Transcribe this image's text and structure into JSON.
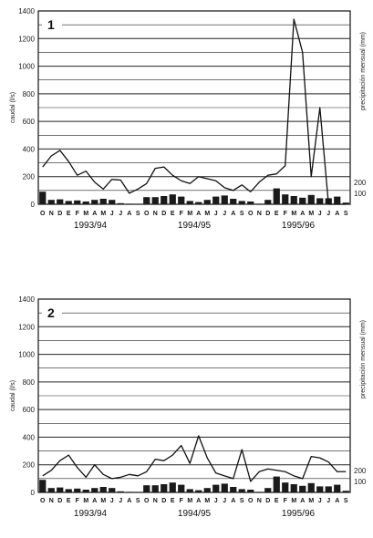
{
  "chart_data": [
    {
      "type": "line+bar",
      "panel_label": "1",
      "ylabel_left": "caudal (l/s)",
      "ylabel_right": "precipitación mensual (mm)",
      "ylim_left": [
        0,
        1400
      ],
      "yticks_left": [
        "0",
        "200",
        "400",
        "600",
        "800",
        "1000",
        "1200",
        "1400"
      ],
      "yticks_right": [
        "0",
        "100",
        "200"
      ],
      "months": [
        "O",
        "N",
        "D",
        "E",
        "F",
        "M",
        "A",
        "M",
        "J",
        "J",
        "A",
        "S",
        "O",
        "N",
        "D",
        "E",
        "F",
        "M",
        "A",
        "M",
        "J",
        "J",
        "A",
        "S",
        "O",
        "N",
        "D",
        "E",
        "F",
        "M",
        "A",
        "M",
        "J",
        "J",
        "A",
        "S"
      ],
      "seasons": [
        "1993/94",
        "1994/95",
        "1995/96"
      ],
      "series": [
        {
          "kind": "line",
          "axis": "left",
          "values": [
            270,
            350,
            390,
            310,
            210,
            240,
            160,
            110,
            180,
            175,
            80,
            110,
            150,
            260,
            270,
            210,
            170,
            150,
            200,
            185,
            170,
            120,
            100,
            140,
            90,
            160,
            210,
            220,
            280,
            1340,
            1100,
            200,
            700,
            0,
            0,
            0
          ]
        },
        {
          "kind": "bar",
          "axis": "right",
          "values": [
            115,
            40,
            45,
            30,
            35,
            25,
            40,
            50,
            40,
            10,
            5,
            0,
            65,
            65,
            75,
            90,
            70,
            30,
            20,
            40,
            70,
            80,
            50,
            30,
            25,
            5,
            40,
            145,
            90,
            75,
            60,
            85,
            55,
            55,
            70,
            15
          ]
        }
      ]
    },
    {
      "type": "line+bar",
      "panel_label": "2",
      "ylabel_left": "caudal (l/s)",
      "ylabel_right": "precipitación mensual (mm)",
      "ylim_left": [
        0,
        1400
      ],
      "yticks_left": [
        "0",
        "200",
        "400",
        "600",
        "800",
        "1000",
        "1200",
        "1400"
      ],
      "yticks_right": [
        "0",
        "100",
        "200"
      ],
      "months": [
        "O",
        "N",
        "D",
        "E",
        "F",
        "M",
        "A",
        "M",
        "J",
        "J",
        "A",
        "S",
        "O",
        "N",
        "D",
        "E",
        "F",
        "M",
        "A",
        "M",
        "J",
        "J",
        "A",
        "S",
        "O",
        "N",
        "D",
        "E",
        "F",
        "M",
        "A",
        "M",
        "J",
        "J",
        "A",
        "S"
      ],
      "seasons": [
        "1993/94",
        "1994/95",
        "1995/96"
      ],
      "series": [
        {
          "kind": "line",
          "axis": "left",
          "values": [
            120,
            160,
            230,
            270,
            180,
            110,
            200,
            130,
            100,
            110,
            130,
            120,
            150,
            240,
            230,
            270,
            340,
            210,
            410,
            250,
            140,
            120,
            100,
            310,
            80,
            150,
            170,
            160,
            150,
            120,
            100,
            260,
            250,
            220,
            150,
            150
          ]
        },
        {
          "kind": "bar",
          "axis": "right",
          "values": [
            115,
            40,
            45,
            30,
            35,
            25,
            40,
            50,
            40,
            10,
            5,
            0,
            65,
            65,
            75,
            90,
            70,
            30,
            20,
            40,
            70,
            80,
            50,
            30,
            25,
            5,
            40,
            145,
            90,
            75,
            60,
            85,
            55,
            55,
            70,
            15
          ]
        }
      ]
    }
  ]
}
